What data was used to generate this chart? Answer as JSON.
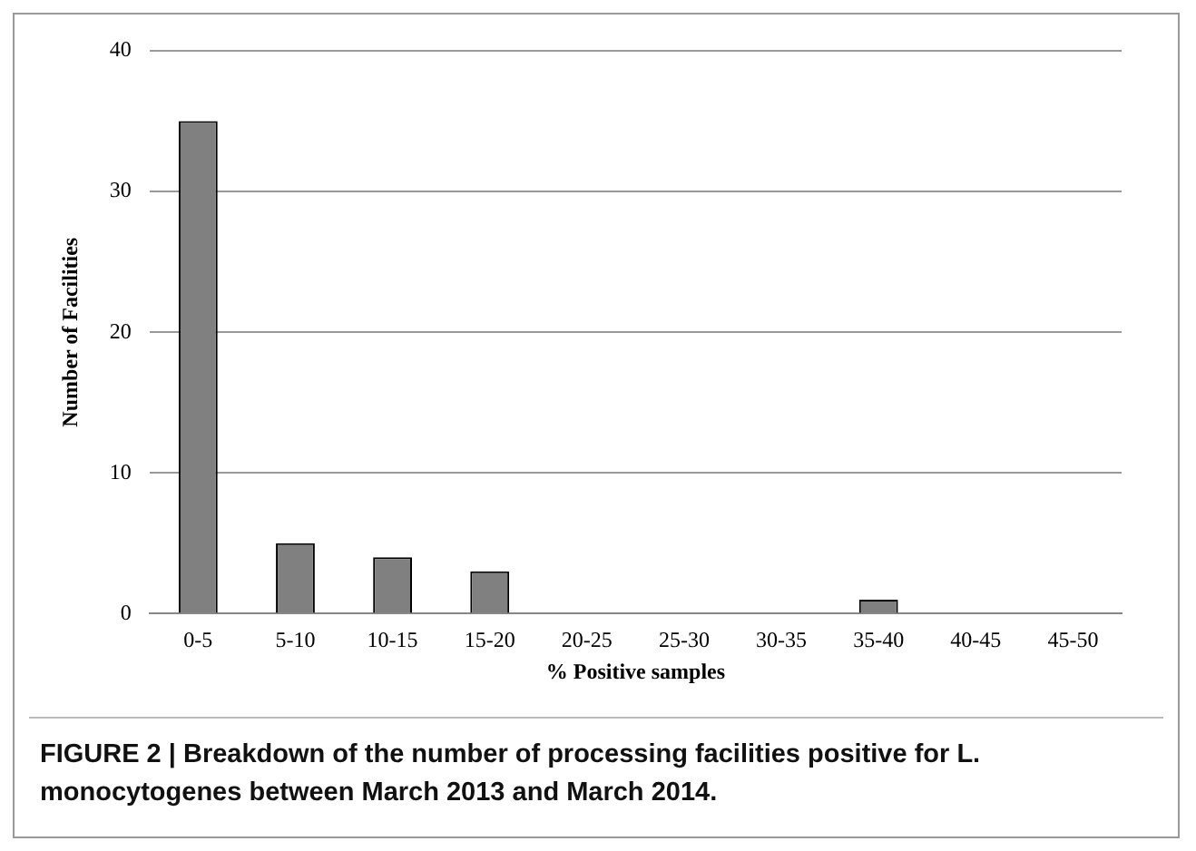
{
  "chart_data": {
    "type": "bar",
    "xlabel": "% Positive samples",
    "ylabel": "Number of Facilities",
    "categories": [
      "0-5",
      "5-10",
      "10-15",
      "15-20",
      "20-25",
      "25-30",
      "30-35",
      "35-40",
      "40-45",
      "45-50"
    ],
    "values": [
      35,
      5,
      4,
      3,
      0,
      0,
      0,
      1,
      0,
      0
    ],
    "color": "#808080",
    "ylim": [
      0,
      40
    ],
    "yticks": [
      0,
      10,
      20,
      30,
      40
    ],
    "grid": "y",
    "legend": false,
    "annotations": [
      "FIGURE 2 | Breakdown of the number of processing facilities positive for L. monocytogenes between March 2013 and March 2014."
    ]
  }
}
